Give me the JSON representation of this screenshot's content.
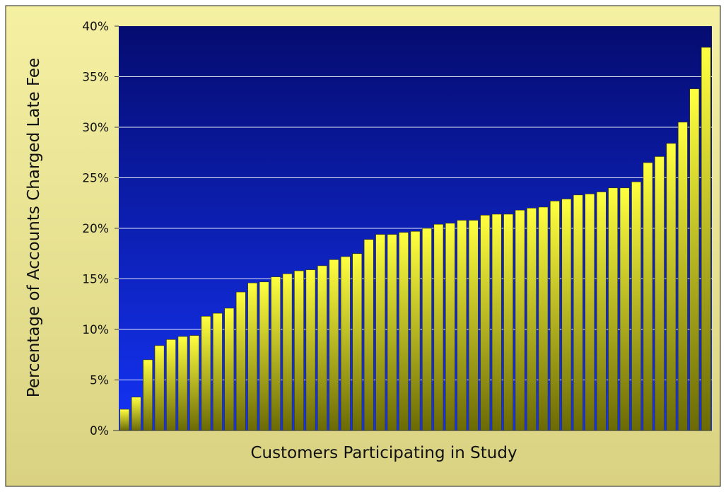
{
  "chart_data": {
    "type": "bar",
    "title": "",
    "xlabel": "Customers Participating in Study",
    "ylabel": "Percentage of Accounts Charged Late Fee",
    "ylim": [
      0,
      40
    ],
    "yticks": [
      0,
      5,
      10,
      15,
      20,
      25,
      30,
      35,
      40
    ],
    "ytick_labels": [
      "0%",
      "5%",
      "10%",
      "15%",
      "20%",
      "25%",
      "30%",
      "35%",
      "40%"
    ],
    "grid": true,
    "legend": "none",
    "values": [
      2.1,
      3.3,
      7.0,
      8.4,
      9.0,
      9.3,
      9.4,
      11.3,
      11.6,
      12.1,
      13.7,
      14.6,
      14.7,
      15.2,
      15.5,
      15.8,
      15.9,
      16.3,
      16.9,
      17.2,
      17.5,
      18.9,
      19.4,
      19.4,
      19.6,
      19.7,
      20.0,
      20.4,
      20.5,
      20.8,
      20.8,
      21.3,
      21.4,
      21.4,
      21.8,
      22.0,
      22.1,
      22.7,
      22.9,
      23.3,
      23.4,
      23.6,
      24.0,
      24.0,
      24.6,
      26.5,
      27.1,
      28.4,
      30.5,
      33.8,
      37.9
    ],
    "colors": {
      "frame_top": "#f5f0a2",
      "frame_bottom": "#d9d282",
      "plot_top": "#050c70",
      "plot_bottom": "#1433f5",
      "bar_top": "#ffff40",
      "bar_bottom": "#6b6a05",
      "gridline": "#ffffff"
    }
  }
}
